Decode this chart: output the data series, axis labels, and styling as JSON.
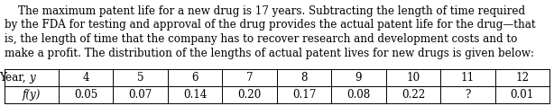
{
  "lines": [
    "    The maximum patent life for a new drug is 17 years. Subtracting the length of time required",
    "by the FDA for testing and approval of the drug provides the actual patent life for the drug—that",
    "is, the length of time that the company has to recover research and development costs and to",
    "make a profit. The distribution of the lengths of actual patent lives for new drugs is given below:"
  ],
  "years": [
    "4",
    "5",
    "6",
    "7",
    "8",
    "9",
    "10",
    "11",
    "12"
  ],
  "probs": [
    "0.05",
    "0.07",
    "0.14",
    "0.20",
    "0.17",
    "0.08",
    "0.22",
    "?",
    "0.01"
  ],
  "bg_color": "#ffffff",
  "text_color": "#000000",
  "font_size": 8.6,
  "table_font_size": 8.6,
  "label_col_label": "Year,",
  "label_col_label_italic": "y",
  "row2_label_italic": "f",
  "row2_label_rest": "(y)"
}
